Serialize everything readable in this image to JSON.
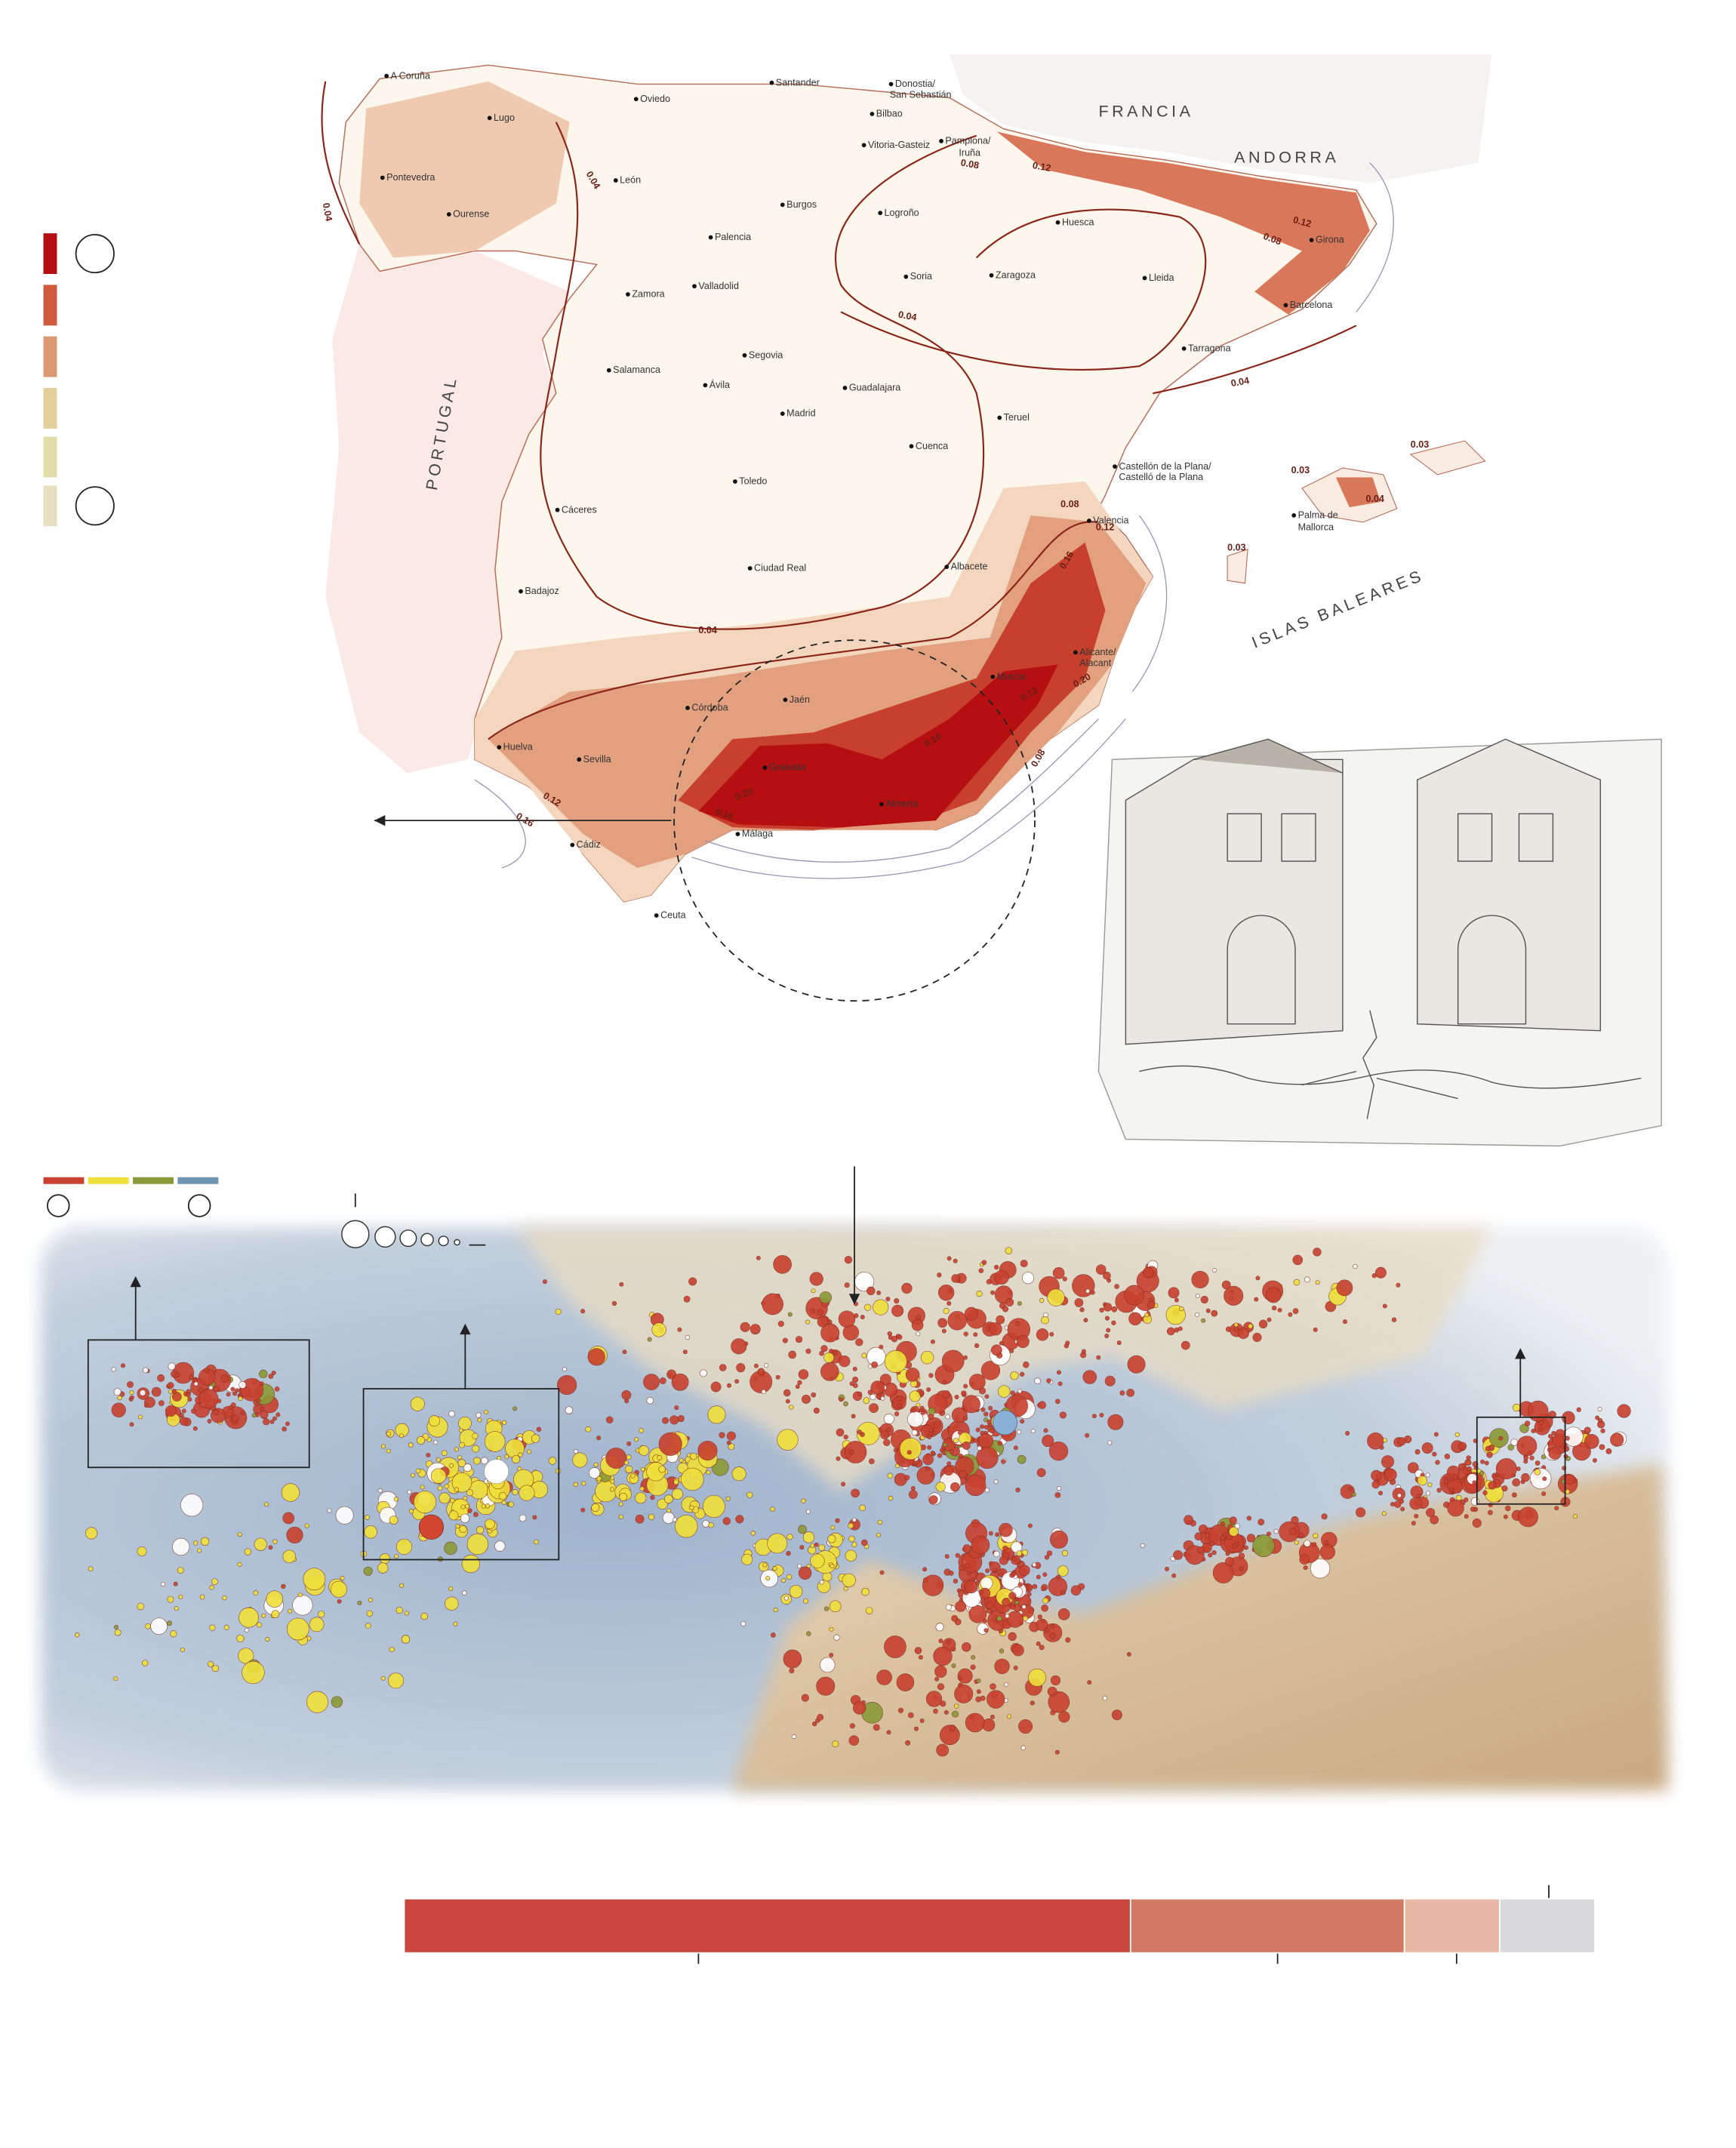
{
  "map": {
    "countries": [
      "FRANCIA",
      "ANDORRA",
      "PORTUGAL",
      "ISLAS BALEARES"
    ],
    "cities": [
      "A Coruña",
      "Oviedo",
      "Santander",
      "Donostia/",
      "San Sebastián",
      "Bilbao",
      "Vitoria-Gasteiz",
      "Pamplona/",
      "Iruña",
      "Lugo",
      "Pontevedra",
      "Ourense",
      "León",
      "Burgos",
      "Logroño",
      "Huesca",
      "Girona",
      "Palencia",
      "Valladolid",
      "Zamora",
      "Soria",
      "Zaragoza",
      "Lleida",
      "Barcelona",
      "Tarragona",
      "Salamanca",
      "Segovia",
      "Ávila",
      "Madrid",
      "Guadalajara",
      "Teruel",
      "Cuenca",
      "Castellón de la Plana/",
      "Castelló de la Plana",
      "Toledo",
      "Cáceres",
      "Valencia",
      "Palma de",
      "Mallorca",
      "Badajoz",
      "Ciudad Real",
      "Albacete",
      "Alicante/",
      "Alacant",
      "Murcia",
      "Córdoba",
      "Jaén",
      "Huelva",
      "Sevilla",
      "Granada",
      "Almería",
      "Málaga",
      "Cádiz",
      "Ceuta"
    ],
    "contour_labels": [
      "0.04",
      "0.04",
      "0.04",
      "0.04",
      "0.04",
      "0.04",
      "0.08",
      "0.08",
      "0.08",
      "0.08",
      "0.12",
      "0.12",
      "0.12",
      "0.12",
      "0.12",
      "0.16",
      "0.16",
      "0.16",
      "0.16",
      "0.20",
      "0.20",
      "0.03",
      "0.03",
      "0.03"
    ]
  },
  "chart_data": {
    "type": "stacked-bar",
    "xlim": [
      0,
      100
    ],
    "series": [
      {
        "color": "#c8463e",
        "values": [
          61
        ]
      },
      {
        "color": "#d07a64",
        "values": [
          23
        ]
      },
      {
        "color": "#e8b9a4",
        "values": [
          8
        ]
      },
      {
        "color": "#d9d9de",
        "values": [
          8
        ]
      }
    ]
  }
}
